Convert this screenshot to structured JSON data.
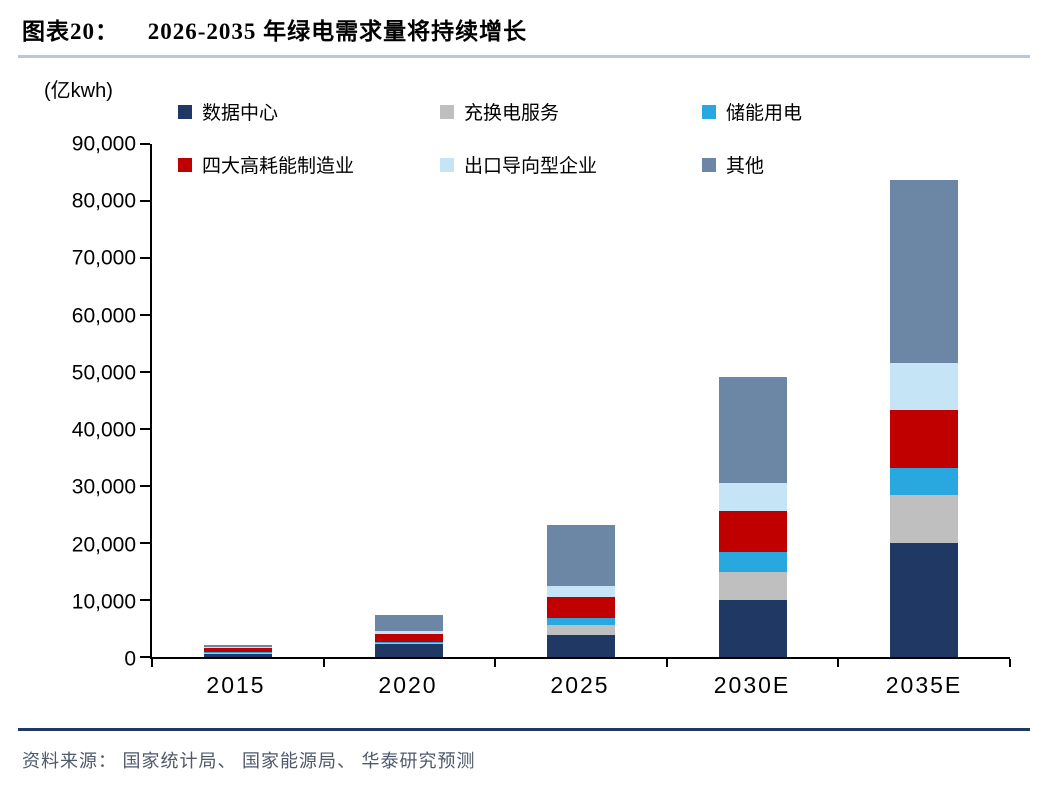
{
  "header": {
    "figure_label": "图表20：",
    "title": "2026-2035 年绿电需求量将持续增长"
  },
  "chart_data": {
    "type": "bar",
    "stacked": true,
    "unit_label": "(亿kwh)",
    "categories": [
      "2015",
      "2020",
      "2025",
      "2030E",
      "2035E"
    ],
    "series": [
      {
        "name": "数据中心",
        "color": "#1F3864",
        "values": [
          600,
          2200,
          3900,
          10000,
          20000
        ]
      },
      {
        "name": "充换电服务",
        "color": "#BFBFBF",
        "values": [
          100,
          300,
          1700,
          4900,
          8400
        ]
      },
      {
        "name": "储能用电",
        "color": "#29A8E0",
        "values": [
          100,
          200,
          1200,
          3500,
          4700
        ]
      },
      {
        "name": "四大高耗能制造业",
        "color": "#C00000",
        "values": [
          800,
          1400,
          3800,
          7300,
          10300
        ]
      },
      {
        "name": "出口导向型企业",
        "color": "#C5E5F7",
        "values": [
          200,
          400,
          1900,
          4800,
          8200
        ]
      },
      {
        "name": "其他",
        "color": "#6C86A6",
        "values": [
          300,
          2800,
          10700,
          18700,
          32100
        ]
      }
    ],
    "totals": [
      2100,
      7300,
      23200,
      49200,
      83700
    ],
    "ylim": [
      0,
      90000
    ],
    "ytick_labels": [
      "0",
      "10,000",
      "20,000",
      "30,000",
      "40,000",
      "50,000",
      "60,000",
      "70,000",
      "80,000",
      "90,000"
    ],
    "grid": false,
    "legend_position": "top"
  },
  "footer": {
    "source": "资料来源： 国家统计局、 国家能源局、 华泰研究预测"
  },
  "colors": {
    "header_rule": "#B9C9D9",
    "footer_rule": "#1F3864",
    "axis": "#000000"
  }
}
